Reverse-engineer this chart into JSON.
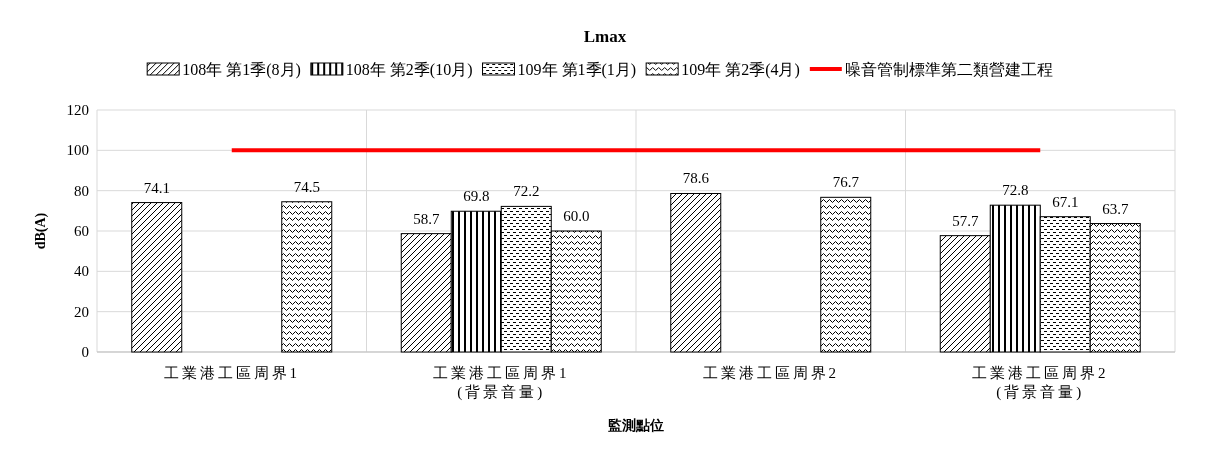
{
  "chart_data": {
    "type": "bar",
    "title": "Lmax",
    "xlabel": "監測點位",
    "ylabel": "dB(A)",
    "categories": [
      "工業港工區周界1",
      "工業港工區周界1\n(背景音量)",
      "工業港工區周界2",
      "工業港工區周界2\n(背景音量)"
    ],
    "series": [
      {
        "name": "108年 第1季(8月)",
        "color": "#000000",
        "values": [
          74.1,
          58.7,
          78.6,
          57.7
        ],
        "value_labels": [
          "74.1",
          "58.7",
          "78.6",
          "57.7"
        ]
      },
      {
        "name": "108年 第2季(10月)",
        "color": "#000000",
        "values": [
          null,
          69.8,
          null,
          72.8
        ],
        "value_labels": [
          null,
          "69.8",
          null,
          "72.8"
        ]
      },
      {
        "name": "109年 第1季(1月)",
        "color": "#000000",
        "values": [
          null,
          72.2,
          null,
          67.1
        ],
        "value_labels": [
          null,
          "72.2",
          null,
          "67.1"
        ]
      },
      {
        "name": "109年 第2季(4月)",
        "color": "#000000",
        "values": [
          74.5,
          60.0,
          76.7,
          63.7
        ],
        "value_labels": [
          "74.5",
          "60.0",
          "76.7",
          "63.7"
        ]
      },
      {
        "name": "噪音管制標準第二類營建工程",
        "type": "line",
        "color": "#ff0000",
        "values": [
          100,
          100,
          100,
          100
        ]
      }
    ],
    "ylim": [
      0,
      120
    ],
    "yticks": [
      0,
      20,
      40,
      60,
      80,
      100,
      120
    ],
    "grid": true,
    "legend": "top"
  }
}
